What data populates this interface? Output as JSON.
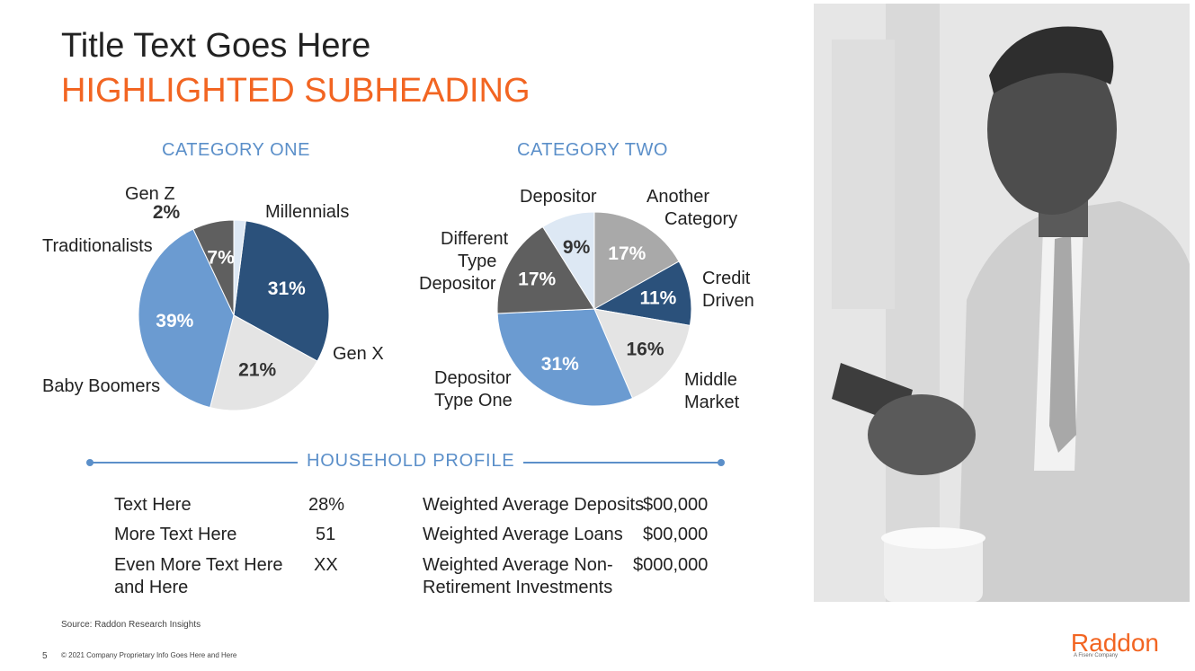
{
  "header": {
    "title": "Title Text Goes Here",
    "subtitle": "HIGHLIGHTED SUBHEADING"
  },
  "colors": {
    "accent_orange": "#f26522",
    "accent_blue": "#5b8fc9",
    "dark_navy": "#2b517b",
    "mid_blue": "#6b9bd1",
    "light_gray": "#e4e4e4",
    "dark_gray": "#5f5f5f",
    "mid_gray": "#a9a9a9",
    "pale_blue": "#dde8f4"
  },
  "chart_data": [
    {
      "type": "pie",
      "title": "CATEGORY ONE",
      "slices": [
        {
          "name": "Millennials",
          "value": 31,
          "label": "31%",
          "color": "#2b517b"
        },
        {
          "name": "Gen X",
          "value": 21,
          "label": "21%",
          "color": "#e4e4e4"
        },
        {
          "name": "Baby Boomers",
          "value": 39,
          "label": "39%",
          "color": "#6b9bd1"
        },
        {
          "name": "Traditionalists",
          "value": 7,
          "label": "7%",
          "color": "#5f5f5f"
        },
        {
          "name": "Gen Z",
          "value": 2,
          "label": "2%",
          "color": "#dde8f4"
        }
      ]
    },
    {
      "type": "pie",
      "title": "CATEGORY TWO",
      "slices": [
        {
          "name": "Another Category",
          "value": 17,
          "label": "17%",
          "color": "#a9a9a9"
        },
        {
          "name": "Credit Driven",
          "value": 11,
          "label": "11%",
          "color": "#2b517b"
        },
        {
          "name": "Middle Market",
          "value": 16,
          "label": "16%",
          "color": "#e4e4e4"
        },
        {
          "name": "Depositor Type One",
          "value": 31,
          "label": "31%",
          "color": "#6b9bd1"
        },
        {
          "name": "Different Type Depositor",
          "value": 17,
          "label": "17%",
          "color": "#5f5f5f"
        },
        {
          "name": "Depositor",
          "value": 9,
          "label": "9%",
          "color": "#dde8f4"
        }
      ]
    }
  ],
  "pie_labels": {
    "one": {
      "genz": "Gen Z",
      "millennials": "Millennials",
      "traditionalists": "Traditionalists",
      "genx": "Gen X",
      "boomers": "Baby Boomers"
    },
    "two": {
      "depositor": "Depositor",
      "another_1": "Another",
      "another_2": "Category",
      "different_1": "Different",
      "different_2": "Type",
      "different_3": "Depositor",
      "credit_1": "Credit",
      "credit_2": "Driven",
      "typeone_1": "Depositor",
      "typeone_2": "Type One",
      "middle_1": "Middle",
      "middle_2": "Market"
    }
  },
  "household": {
    "title": "HOUSEHOLD PROFILE",
    "left_rows": [
      {
        "label": "Text Here",
        "value": "28%"
      },
      {
        "label": "More Text Here",
        "value": "51"
      },
      {
        "label_1": "Even More Text Here",
        "label_2": "and Here",
        "value": "XX"
      }
    ],
    "right_rows": [
      {
        "label": "Weighted Average Deposits",
        "value": "$00,000"
      },
      {
        "label": "Weighted Average Loans",
        "value": "$00,000"
      },
      {
        "label_1": "Weighted Average Non-",
        "label_2": "Retirement Investments",
        "value": "$000,000"
      }
    ]
  },
  "footer": {
    "source": "Source: Raddon Research Insights",
    "page_number": "5",
    "copyright": "© 2021 Company Proprietary Info Goes Here and Here"
  },
  "logo": {
    "name": "Raddon",
    "tagline": "A Fiserv Company"
  }
}
